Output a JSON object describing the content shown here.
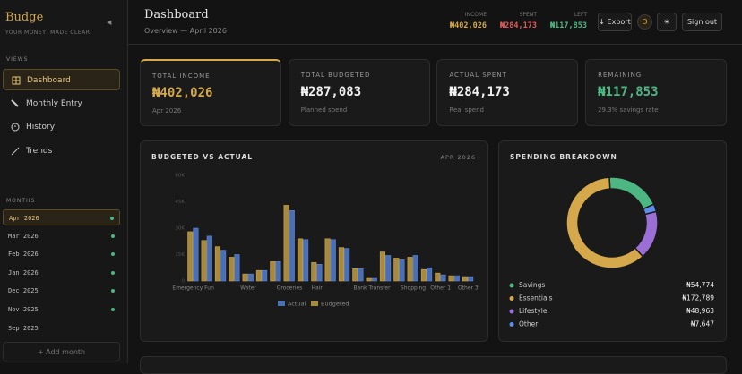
{
  "sidebar": {
    "brand": "Budge",
    "tagline": "YOUR MONEY, MADE CLEAR.",
    "collapse": "◀",
    "views_heading": "VIEWS",
    "nav": [
      "Dashboard",
      "Monthly Entry",
      "History",
      "Trends"
    ],
    "months_heading": "MONTHS",
    "months": [
      "Apr 2026",
      "Mar 2026",
      "Feb 2026",
      "Jan 2026",
      "Dec 2025",
      "Nov 2025",
      "Sep 2025"
    ],
    "add_month": "+ Add month"
  },
  "header": {
    "title": "Dashboard",
    "subtitle": "Overview — April 2026",
    "stats": [
      {
        "label": "INCOME",
        "value": "₦402,026"
      },
      {
        "label": "SPENT",
        "value": "₦284,173"
      },
      {
        "label": "LEFT",
        "value": "₦117,853"
      }
    ],
    "export": "↓ Export",
    "avatar": "D",
    "theme": "☀",
    "sign_out": "Sign out"
  },
  "cards": [
    {
      "label": "TOTAL INCOME",
      "value": "₦402,026",
      "note": "Apr 2026"
    },
    {
      "label": "TOTAL BUDGETED",
      "value": "₦287,083",
      "note": "Planned spend"
    },
    {
      "label": "ACTUAL SPENT",
      "value": "₦284,173",
      "note": "Real spend"
    },
    {
      "label": "REMAINING",
      "value": "₦117,853",
      "note": "29.3% savings rate"
    }
  ],
  "chart_data": [
    {
      "type": "bar",
      "title": "BUDGETED VS ACTUAL",
      "subtitle": "APR 2026",
      "categories": [
        "Emergency Fun",
        null,
        null,
        null,
        "Water",
        null,
        null,
        "Groceries",
        null,
        "Hair",
        null,
        null,
        null,
        "Bank Transfer",
        null,
        null,
        "Shopping",
        null,
        "Other 1",
        null,
        "Other 3"
      ],
      "series": [
        {
          "name": "Actual",
          "color": "#4a6fb5",
          "values": [
            30000,
            25500,
            17500,
            15000,
            4000,
            6000,
            11000,
            40000,
            23500,
            9500,
            23500,
            18500,
            7000,
            1500,
            14500,
            12000,
            14500,
            7500,
            3500,
            3000,
            2000
          ]
        },
        {
          "name": "Budgeted",
          "color": "#a88a3e",
          "values": [
            28000,
            23000,
            19500,
            13500,
            4000,
            6000,
            11000,
            43000,
            24000,
            10500,
            24000,
            19000,
            7000,
            1500,
            16500,
            13000,
            13500,
            6500,
            4500,
            3000,
            2000
          ]
        }
      ],
      "ylim": [
        0,
        60000
      ],
      "yticks": [
        0,
        {
          "value": 15000,
          "label": "15K"
        },
        {
          "value": 30000,
          "label": "30K"
        },
        {
          "value": 45000,
          "label": "45K"
        },
        {
          "value": 60000,
          "label": "60K"
        }
      ]
    },
    {
      "type": "pie",
      "title": "SPENDING BREAKDOWN",
      "categories": [
        "Savings",
        "Essentials",
        "Lifestyle",
        "Other"
      ],
      "values": [
        54774,
        172789,
        48963,
        7647
      ],
      "value_labels": [
        "₦54,774",
        "₦172,789",
        "₦48,963",
        "₦7,647"
      ],
      "colors": [
        "#4cb782",
        "#d4a84b",
        "#9b6fd6",
        "#5b8def"
      ]
    }
  ]
}
